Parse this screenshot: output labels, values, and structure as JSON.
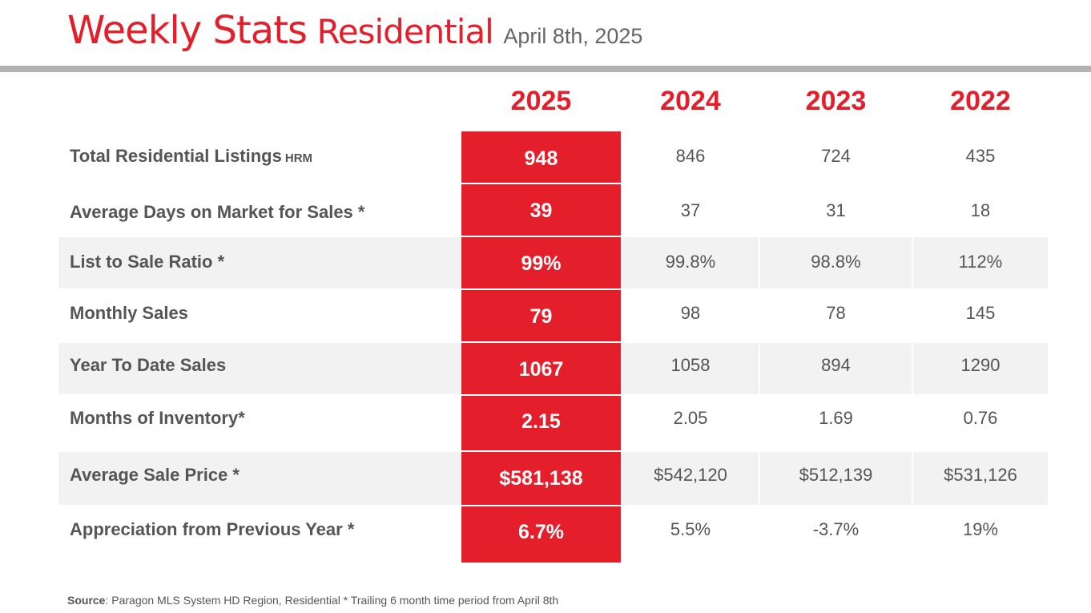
{
  "header": {
    "title_main": "Weekly Stats",
    "title_sub": "Residential",
    "date": "April 8th, 2025"
  },
  "columns": [
    "2025",
    "2024",
    "2023",
    "2022"
  ],
  "rows": [
    {
      "label": "Total Residential Listings",
      "suffix": "HRM",
      "values": [
        "948",
        "846",
        "724",
        "435"
      ]
    },
    {
      "label": "Average Days on Market for Sales *",
      "suffix": "",
      "values": [
        "39",
        "37",
        "31",
        "18"
      ]
    },
    {
      "label": "List to Sale Ratio *",
      "suffix": "",
      "values": [
        "99%",
        "99.8%",
        "98.8%",
        "112%"
      ]
    },
    {
      "label": "Monthly Sales",
      "suffix": "",
      "values": [
        "79",
        "98",
        "78",
        "145"
      ]
    },
    {
      "label": "Year To Date Sales",
      "suffix": "",
      "values": [
        "1067",
        "1058",
        "894",
        "1290"
      ]
    },
    {
      "label": "Months of Inventory*",
      "suffix": "",
      "values": [
        "2.15",
        "2.05",
        "1.69",
        "0.76"
      ]
    },
    {
      "label": "Average Sale Price *",
      "suffix": "",
      "values": [
        "$581,138",
        "$542,120",
        "$512,139",
        "$531,126"
      ]
    },
    {
      "label": "Appreciation from Previous Year *",
      "suffix": "",
      "values": [
        "6.7%",
        "5.5%",
        "-3.7%",
        "19%"
      ]
    }
  ],
  "footer": {
    "source_label": "Source",
    "source_text": ": Paragon MLS System HD Region,  Residential * Trailing 6 month time period  from April 8th"
  },
  "colors": {
    "accent": "#e41e2b",
    "rule": "#b3b3b3",
    "shade": "#f2f2f2",
    "text": "#555555"
  }
}
